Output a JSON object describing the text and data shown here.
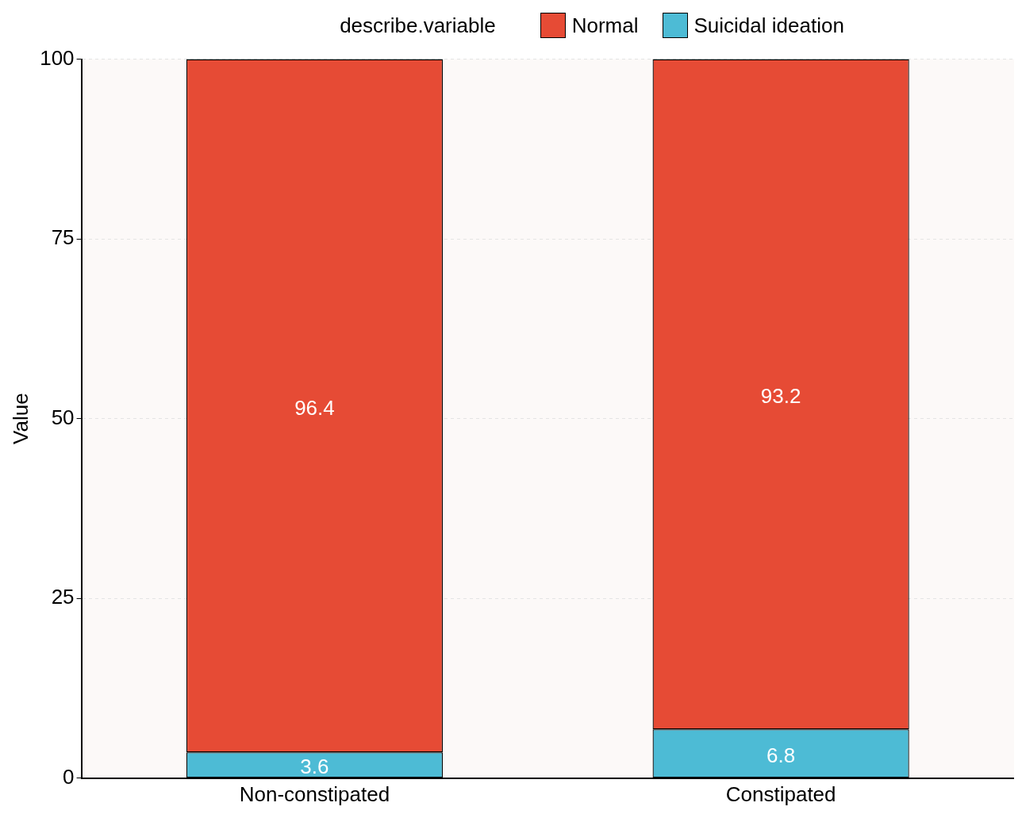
{
  "chart_data": {
    "type": "bar",
    "ylabel": "Value",
    "legend_title": "describe.variable",
    "categories": [
      "Non-constipated",
      "Constipated"
    ],
    "series": [
      {
        "name": "Suicidal ideation",
        "color": "#4dbbd5",
        "values": [
          3.6,
          6.8
        ]
      },
      {
        "name": "Normal",
        "color": "#e64b35",
        "values": [
          96.4,
          93.2
        ]
      }
    ],
    "stacked": true,
    "ylim": [
      0,
      100
    ],
    "yticks": [
      0,
      25,
      50,
      75,
      100
    ],
    "grid": "y",
    "legend": "top",
    "data_labels": true
  }
}
